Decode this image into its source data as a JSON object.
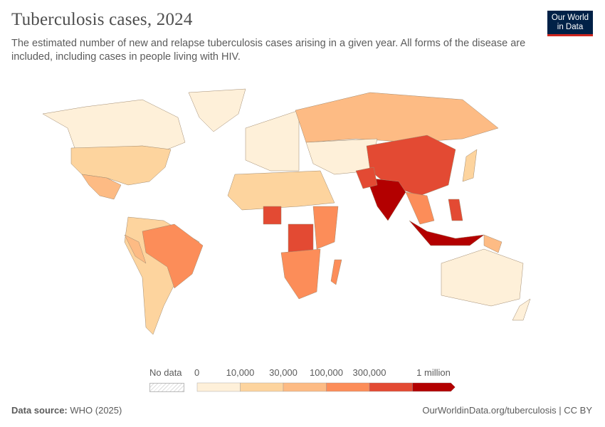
{
  "header": {
    "title": "Tuberculosis cases, 2024",
    "subtitle": "The estimated number of new and relapse tuberculosis cases arising in a given year. All forms of the disease are included, including cases in people living with HIV.",
    "logo_text": "Our World in Data"
  },
  "legend": {
    "no_data_label": "No data",
    "ticks": [
      "0",
      "10,000",
      "30,000",
      "100,000",
      "300,000",
      "1 million"
    ],
    "colors": [
      "#fef0d9",
      "#fdd49e",
      "#fdbb84",
      "#fc8d59",
      "#e34a33",
      "#b30000"
    ]
  },
  "footer": {
    "source_label": "Data source:",
    "source": "WHO (2025)",
    "url": "OurWorldinData.org/tuberculosis | CC BY"
  },
  "map": {
    "regions": [
      {
        "name": "Canada",
        "bin": 0
      },
      {
        "name": "United States",
        "bin": 1
      },
      {
        "name": "Mexico",
        "bin": 2
      },
      {
        "name": "Greenland",
        "bin": 0
      },
      {
        "name": "South America",
        "bin": 1
      },
      {
        "name": "Brazil",
        "bin": 3
      },
      {
        "name": "Peru",
        "bin": 2
      },
      {
        "name": "Europe",
        "bin": 0
      },
      {
        "name": "Russia",
        "bin": 2
      },
      {
        "name": "Central Asia",
        "bin": 0
      },
      {
        "name": "North Africa",
        "bin": 1
      },
      {
        "name": "Nigeria",
        "bin": 4
      },
      {
        "name": "DR Congo",
        "bin": 4
      },
      {
        "name": "East Africa",
        "bin": 3
      },
      {
        "name": "Southern Africa",
        "bin": 3
      },
      {
        "name": "Madagascar",
        "bin": 3
      },
      {
        "name": "China",
        "bin": 4
      },
      {
        "name": "India",
        "bin": 5
      },
      {
        "name": "Pakistan",
        "bin": 4
      },
      {
        "name": "Southeast Asia",
        "bin": 3
      },
      {
        "name": "Philippines",
        "bin": 4
      },
      {
        "name": "Indonesia",
        "bin": 5
      },
      {
        "name": "Japan",
        "bin": 1
      },
      {
        "name": "Australia",
        "bin": 0
      },
      {
        "name": "New Zealand",
        "bin": 0
      },
      {
        "name": "Papua New Guinea",
        "bin": 2
      }
    ]
  }
}
